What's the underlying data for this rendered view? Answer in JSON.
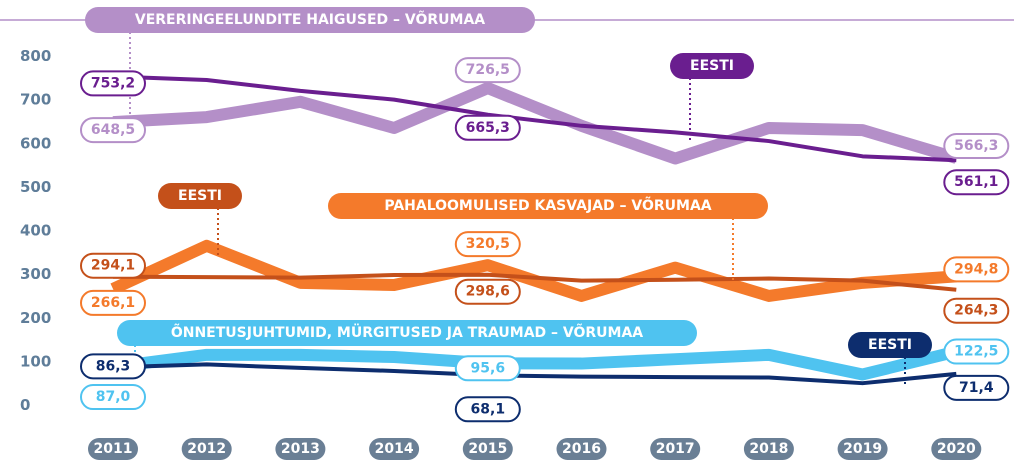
{
  "chart_data": {
    "type": "line",
    "categories": [
      "2011",
      "2012",
      "2013",
      "2014",
      "2015",
      "2016",
      "2017",
      "2018",
      "2019",
      "2020"
    ],
    "ylim": [
      0,
      800
    ],
    "yticks": [
      0,
      100,
      200,
      300,
      400,
      500,
      600,
      700,
      800
    ],
    "series": [
      {
        "name": "VERERINGEELUNDITE HAIGUSED – VÕRUMAA",
        "color": "#b48fc8",
        "values": [
          648.5,
          660,
          695,
          635,
          726.5,
          640,
          565,
          635,
          630,
          566.3
        ],
        "value_labels": [
          "648,5",
          null,
          null,
          null,
          "726,5",
          null,
          null,
          null,
          null,
          "566,3"
        ]
      },
      {
        "name": "EESTI",
        "color": "#6a1e8f",
        "values": [
          753.2,
          745,
          720,
          700,
          665.3,
          640,
          625,
          605,
          570,
          561.1
        ],
        "value_labels": [
          "753,2",
          null,
          null,
          null,
          "665,3",
          null,
          null,
          null,
          null,
          "561,1"
        ]
      },
      {
        "name": "PAHALOOMULISED KASVAJAD – VÕRUMAA",
        "color": "#f47a2b",
        "values": [
          266.1,
          365,
          280,
          275,
          320.5,
          250,
          315,
          250,
          280,
          294.8
        ],
        "value_labels": [
          "266,1",
          null,
          null,
          null,
          "320,5",
          null,
          null,
          null,
          null,
          "294,8"
        ]
      },
      {
        "name": "EESTI",
        "color": "#c4501a",
        "values": [
          294.1,
          293,
          292,
          298,
          298.6,
          285,
          287,
          290,
          285,
          264.3
        ],
        "value_labels": [
          "294,1",
          null,
          null,
          null,
          "298,6",
          null,
          null,
          null,
          null,
          "264,3"
        ]
      },
      {
        "name": "ÕNNETUSJUHTUMID, MÜRGITUSED JA TRAUMAD – VÕRUMAA",
        "color": "#4fc3f0",
        "values": [
          87.0,
          115,
          115,
          110,
          95.6,
          95,
          105,
          115,
          70,
          122.5
        ],
        "value_labels": [
          "87,0",
          null,
          null,
          null,
          "95,6",
          null,
          null,
          null,
          null,
          "122,5"
        ]
      },
      {
        "name": "EESTI",
        "color": "#0d2d6e",
        "values": [
          86.3,
          93,
          85,
          78,
          68.1,
          65,
          64,
          63,
          50,
          71.4
        ],
        "value_labels": [
          "86,3",
          null,
          null,
          null,
          "68,1",
          null,
          null,
          null,
          null,
          "71,4"
        ]
      }
    ]
  }
}
